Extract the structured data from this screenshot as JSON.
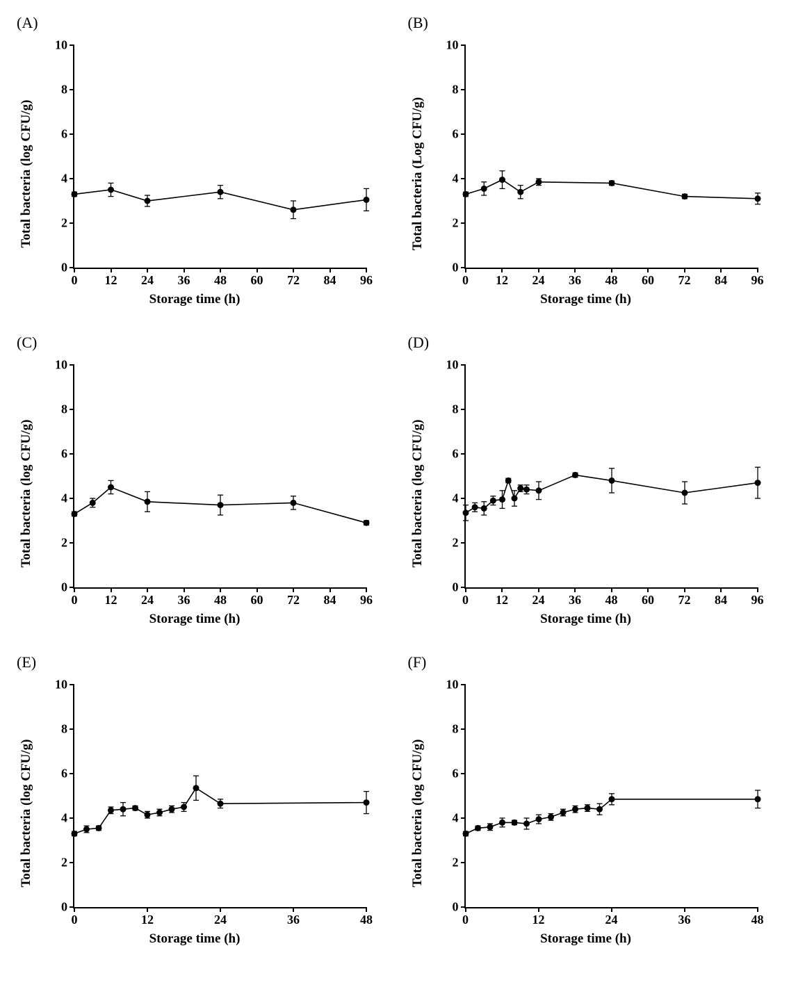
{
  "global": {
    "background_color": "#ffffff",
    "line_color": "#000000",
    "marker_fill": "#000000",
    "axis_color": "#000000",
    "text_color": "#000000",
    "font_family": "Times New Roman",
    "axis_linewidth": 2.5,
    "data_linewidth": 1.6,
    "marker_radius": 4.5,
    "errorbar_linewidth": 1.3,
    "errorbar_capwidth": 8,
    "tick_fontsize": 18,
    "label_fontsize": 19,
    "panel_label_fontsize": 22
  },
  "panels": [
    {
      "id": "A",
      "label": "(A)",
      "xlabel": "Storage time (h)",
      "ylabel": "Total bacteria (log CFU/g)",
      "xlim": [
        0,
        96
      ],
      "ylim": [
        0,
        10
      ],
      "xticks": [
        0,
        12,
        24,
        36,
        48,
        60,
        72,
        84,
        96
      ],
      "yticks": [
        0,
        2,
        4,
        6,
        8,
        10
      ],
      "type": "line-scatter-errorbar",
      "data": {
        "x": [
          0,
          12,
          24,
          48,
          72,
          96
        ],
        "y": [
          3.3,
          3.5,
          3.0,
          3.4,
          2.6,
          3.05
        ],
        "err": [
          0.1,
          0.3,
          0.25,
          0.3,
          0.4,
          0.5
        ]
      }
    },
    {
      "id": "B",
      "label": "(B)",
      "xlabel": "Storage time (h)",
      "ylabel": "Total bacteria (Log CFU/g)",
      "xlim": [
        0,
        96
      ],
      "ylim": [
        0,
        10
      ],
      "xticks": [
        0,
        12,
        24,
        36,
        48,
        60,
        72,
        84,
        96
      ],
      "yticks": [
        0,
        2,
        4,
        6,
        8,
        10
      ],
      "type": "line-scatter-errorbar",
      "data": {
        "x": [
          0,
          6,
          12,
          18,
          24,
          48,
          72,
          96
        ],
        "y": [
          3.3,
          3.55,
          3.95,
          3.4,
          3.85,
          3.8,
          3.2,
          3.1
        ],
        "err": [
          0.1,
          0.3,
          0.4,
          0.3,
          0.15,
          0.1,
          0.1,
          0.25
        ]
      }
    },
    {
      "id": "C",
      "label": "(C)",
      "xlabel": "Storage time (h)",
      "ylabel": "Total bacteria (log CFU/g)",
      "xlim": [
        0,
        96
      ],
      "ylim": [
        0,
        10
      ],
      "xticks": [
        0,
        12,
        24,
        36,
        48,
        60,
        72,
        84,
        96
      ],
      "yticks": [
        0,
        2,
        4,
        6,
        8,
        10
      ],
      "type": "line-scatter-errorbar",
      "data": {
        "x": [
          0,
          6,
          12,
          24,
          48,
          72,
          96
        ],
        "y": [
          3.3,
          3.8,
          4.5,
          3.85,
          3.7,
          3.8,
          2.9
        ],
        "err": [
          0.1,
          0.2,
          0.3,
          0.45,
          0.45,
          0.3,
          0.1
        ]
      }
    },
    {
      "id": "D",
      "label": "(D)",
      "xlabel": "Storage time (h)",
      "ylabel": "Total bacteria (log CFU/g)",
      "xlim": [
        0,
        96
      ],
      "ylim": [
        0,
        10
      ],
      "xticks": [
        0,
        12,
        24,
        36,
        48,
        60,
        72,
        84,
        96
      ],
      "yticks": [
        0,
        2,
        4,
        6,
        8,
        10
      ],
      "type": "line-scatter-errorbar",
      "data": {
        "x": [
          0,
          3,
          6,
          9,
          12,
          14,
          16,
          18,
          20,
          24,
          36,
          48,
          72,
          96
        ],
        "y": [
          3.35,
          3.6,
          3.55,
          3.9,
          3.95,
          4.8,
          4.0,
          4.45,
          4.4,
          4.35,
          5.05,
          4.8,
          4.25,
          4.7
        ],
        "err": [
          0.35,
          0.2,
          0.3,
          0.2,
          0.4,
          0.1,
          0.35,
          0.15,
          0.2,
          0.4,
          0.1,
          0.55,
          0.5,
          0.7
        ]
      }
    },
    {
      "id": "E",
      "label": "(E)",
      "xlabel": "Storage time (h)",
      "ylabel": "Total bacteria (log CFU/g)",
      "xlim": [
        0,
        48
      ],
      "ylim": [
        0,
        10
      ],
      "xticks": [
        0,
        12,
        24,
        36,
        48
      ],
      "yticks": [
        0,
        2,
        4,
        6,
        8,
        10
      ],
      "type": "line-scatter-errorbar",
      "data": {
        "x": [
          0,
          2,
          4,
          6,
          8,
          10,
          12,
          14,
          16,
          18,
          20,
          24,
          48
        ],
        "y": [
          3.3,
          3.5,
          3.55,
          4.35,
          4.4,
          4.45,
          4.15,
          4.25,
          4.4,
          4.5,
          5.35,
          4.65,
          4.7
        ],
        "err": [
          0.1,
          0.15,
          0.1,
          0.15,
          0.3,
          0.1,
          0.15,
          0.15,
          0.15,
          0.2,
          0.55,
          0.2,
          0.5
        ]
      }
    },
    {
      "id": "F",
      "label": "(F)",
      "xlabel": "Storage time (h)",
      "ylabel": "Total bacteria (log CFU/g)",
      "xlim": [
        0,
        48
      ],
      "ylim": [
        0,
        10
      ],
      "xticks": [
        0,
        12,
        24,
        36,
        48
      ],
      "yticks": [
        0,
        2,
        4,
        6,
        8,
        10
      ],
      "type": "line-scatter-errorbar",
      "data": {
        "x": [
          0,
          2,
          4,
          6,
          8,
          10,
          12,
          14,
          16,
          18,
          20,
          22,
          24,
          48
        ],
        "y": [
          3.3,
          3.55,
          3.6,
          3.8,
          3.8,
          3.75,
          3.95,
          4.05,
          4.25,
          4.4,
          4.45,
          4.4,
          4.85,
          4.85
        ],
        "err": [
          0.1,
          0.1,
          0.15,
          0.2,
          0.1,
          0.25,
          0.2,
          0.15,
          0.15,
          0.15,
          0.15,
          0.25,
          0.25,
          0.4
        ]
      }
    }
  ]
}
